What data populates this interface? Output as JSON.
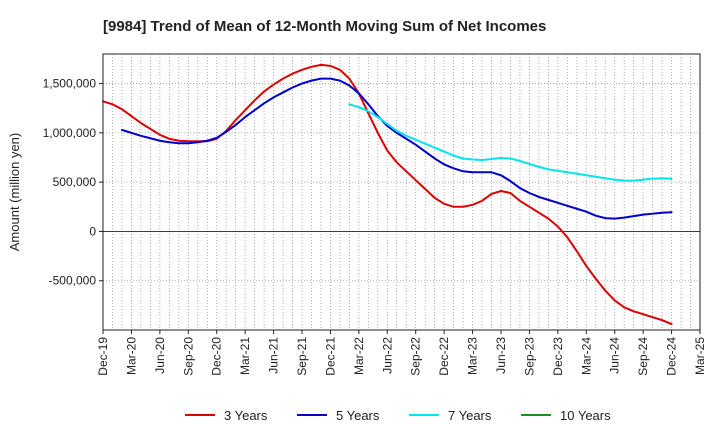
{
  "chart_data": {
    "type": "line",
    "title": "[9984]  Trend of Mean of 12-Month Moving Sum of Net Incomes",
    "xlabel": "",
    "ylabel": "Amount (million yen)",
    "ylim": [
      -1000000,
      1800000
    ],
    "yticks": [
      -500000,
      0,
      500000,
      1000000,
      1500000
    ],
    "ytick_labels": [
      "-500,000",
      "0",
      "500,000",
      "1,000,000",
      "1,500,000"
    ],
    "x_range": [
      0,
      63
    ],
    "x_tick_positions": [
      0,
      3,
      6,
      9,
      12,
      15,
      18,
      21,
      24,
      27,
      30,
      33,
      36,
      39,
      42,
      45,
      48,
      51,
      54,
      57,
      60,
      63
    ],
    "x_tick_labels": [
      "Dec-19",
      "Mar-20",
      "Jun-20",
      "Sep-20",
      "Dec-20",
      "Mar-21",
      "Jun-21",
      "Sep-21",
      "Dec-21",
      "Mar-22",
      "Jun-22",
      "Sep-22",
      "Dec-22",
      "Mar-23",
      "Jun-23",
      "Sep-23",
      "Dec-23",
      "Mar-24",
      "Jun-24",
      "Sep-24",
      "Dec-24",
      "Mar-25"
    ],
    "grid": true,
    "legend_position": "bottom",
    "series": [
      {
        "name": "3 Years",
        "color": "#dd0000",
        "x": [
          0,
          1,
          2,
          3,
          4,
          5,
          6,
          7,
          8,
          9,
          10,
          11,
          12,
          13,
          14,
          15,
          16,
          17,
          18,
          19,
          20,
          21,
          22,
          23,
          24,
          25,
          26,
          27,
          28,
          29,
          30,
          31,
          32,
          33,
          34,
          35,
          36,
          37,
          38,
          39,
          40,
          41,
          42,
          43,
          44,
          45,
          46,
          47,
          48,
          49,
          50,
          51,
          52,
          53,
          54,
          55,
          56,
          57,
          58,
          59,
          60
        ],
        "values": [
          1320000,
          1290000,
          1240000,
          1170000,
          1100000,
          1040000,
          980000,
          940000,
          920000,
          915000,
          915000,
          915000,
          940000,
          1020000,
          1130000,
          1230000,
          1330000,
          1420000,
          1490000,
          1550000,
          1600000,
          1640000,
          1670000,
          1690000,
          1680000,
          1640000,
          1550000,
          1400000,
          1200000,
          1000000,
          820000,
          700000,
          610000,
          520000,
          430000,
          340000,
          280000,
          250000,
          250000,
          270000,
          310000,
          380000,
          410000,
          390000,
          310000,
          250000,
          190000,
          130000,
          50000,
          -60000,
          -200000,
          -350000,
          -480000,
          -600000,
          -700000,
          -770000,
          -810000,
          -840000,
          -870000,
          -900000,
          -940000
        ]
      },
      {
        "name": "5 Years",
        "color": "#0000cc",
        "x": [
          2,
          3,
          4,
          5,
          6,
          7,
          8,
          9,
          10,
          11,
          12,
          13,
          14,
          15,
          16,
          17,
          18,
          19,
          20,
          21,
          22,
          23,
          24,
          25,
          26,
          27,
          28,
          29,
          30,
          31,
          32,
          33,
          34,
          35,
          36,
          37,
          38,
          39,
          40,
          41,
          42,
          43,
          44,
          45,
          46,
          47,
          48,
          49,
          50,
          51,
          52,
          53,
          54,
          55,
          56,
          57,
          58,
          59,
          60
        ],
        "values": [
          1030000,
          1000000,
          970000,
          945000,
          920000,
          905000,
          895000,
          895000,
          905000,
          920000,
          950000,
          1010000,
          1080000,
          1160000,
          1230000,
          1300000,
          1360000,
          1410000,
          1460000,
          1500000,
          1530000,
          1550000,
          1550000,
          1530000,
          1480000,
          1400000,
          1290000,
          1170000,
          1070000,
          1000000,
          940000,
          880000,
          810000,
          740000,
          680000,
          640000,
          610000,
          600000,
          600000,
          600000,
          570000,
          510000,
          440000,
          390000,
          350000,
          320000,
          290000,
          260000,
          230000,
          200000,
          160000,
          135000,
          130000,
          140000,
          155000,
          170000,
          180000,
          190000,
          195000
        ]
      },
      {
        "name": "7 Years",
        "color": "#00e5ee",
        "x": [
          26,
          27,
          28,
          29,
          30,
          31,
          32,
          33,
          34,
          35,
          36,
          37,
          38,
          39,
          40,
          41,
          42,
          43,
          44,
          45,
          46,
          47,
          48,
          49,
          50,
          51,
          52,
          53,
          54,
          55,
          56,
          57,
          58,
          59,
          60
        ],
        "values": [
          1290000,
          1260000,
          1220000,
          1160000,
          1090000,
          1020000,
          970000,
          930000,
          890000,
          850000,
          810000,
          770000,
          740000,
          730000,
          725000,
          735000,
          745000,
          740000,
          715000,
          685000,
          655000,
          630000,
          615000,
          600000,
          585000,
          570000,
          555000,
          540000,
          525000,
          515000,
          515000,
          525000,
          535000,
          540000,
          535000
        ]
      },
      {
        "name": "10 Years",
        "color": "#228b22",
        "x": [],
        "values": []
      }
    ]
  }
}
